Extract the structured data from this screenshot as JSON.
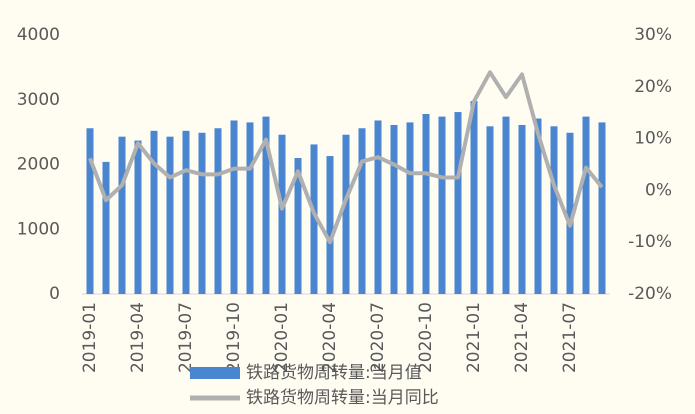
{
  "chart_data": {
    "type": "bar-line",
    "categories": [
      "2019-01",
      null,
      null,
      "2019-04",
      null,
      null,
      "2019-07",
      null,
      null,
      "2019-10",
      null,
      null,
      "2020-01",
      null,
      null,
      "2020-04",
      null,
      null,
      "2020-07",
      null,
      null,
      "2020-10",
      null,
      null,
      "2021-01",
      null,
      null,
      "2021-04",
      null,
      null,
      "2021-07",
      null,
      null
    ],
    "series": [
      {
        "name": "铁路货物周转量:当月值",
        "color": "#4a86d0",
        "kind": "bar",
        "axis": "y",
        "values": [
          2560,
          2040,
          2430,
          2370,
          2520,
          2430,
          2520,
          2490,
          2560,
          2680,
          2650,
          2740,
          2460,
          2100,
          2310,
          2130,
          2460,
          2560,
          2680,
          2610,
          2650,
          2780,
          2740,
          2810,
          2980,
          2590,
          2740,
          2610,
          2710,
          2590,
          2490,
          2740,
          2650
        ]
      },
      {
        "name": "铁路货物周转量:当月同比",
        "color": "#b0b0b0",
        "kind": "line",
        "axis": "y2",
        "values": [
          6.2,
          -1.9,
          1.0,
          9.1,
          5.2,
          2.5,
          3.9,
          3.1,
          3.1,
          4.2,
          4.2,
          9.8,
          -3.5,
          3.7,
          -4.4,
          -10,
          -1.7,
          5.6,
          6.4,
          5.0,
          3.3,
          3.3,
          2.5,
          2.5,
          17.2,
          22.8,
          18.0,
          22.4,
          11,
          1.0,
          -6.8,
          4.4,
          0.6
        ]
      }
    ],
    "ylim": [
      0,
      4000
    ],
    "yticks": [
      0,
      1000,
      2000,
      3000,
      4000
    ],
    "y2lim": [
      -20,
      30
    ],
    "y2ticks": [
      {
        "value": -20,
        "label": "-20%"
      },
      {
        "value": -10,
        "label": "-10%"
      },
      {
        "value": 0,
        "label": "0%"
      },
      {
        "value": 10,
        "label": "10%"
      },
      {
        "value": 20,
        "label": "20%"
      },
      {
        "value": 30,
        "label": "30%"
      }
    ],
    "legend": "bottom"
  }
}
